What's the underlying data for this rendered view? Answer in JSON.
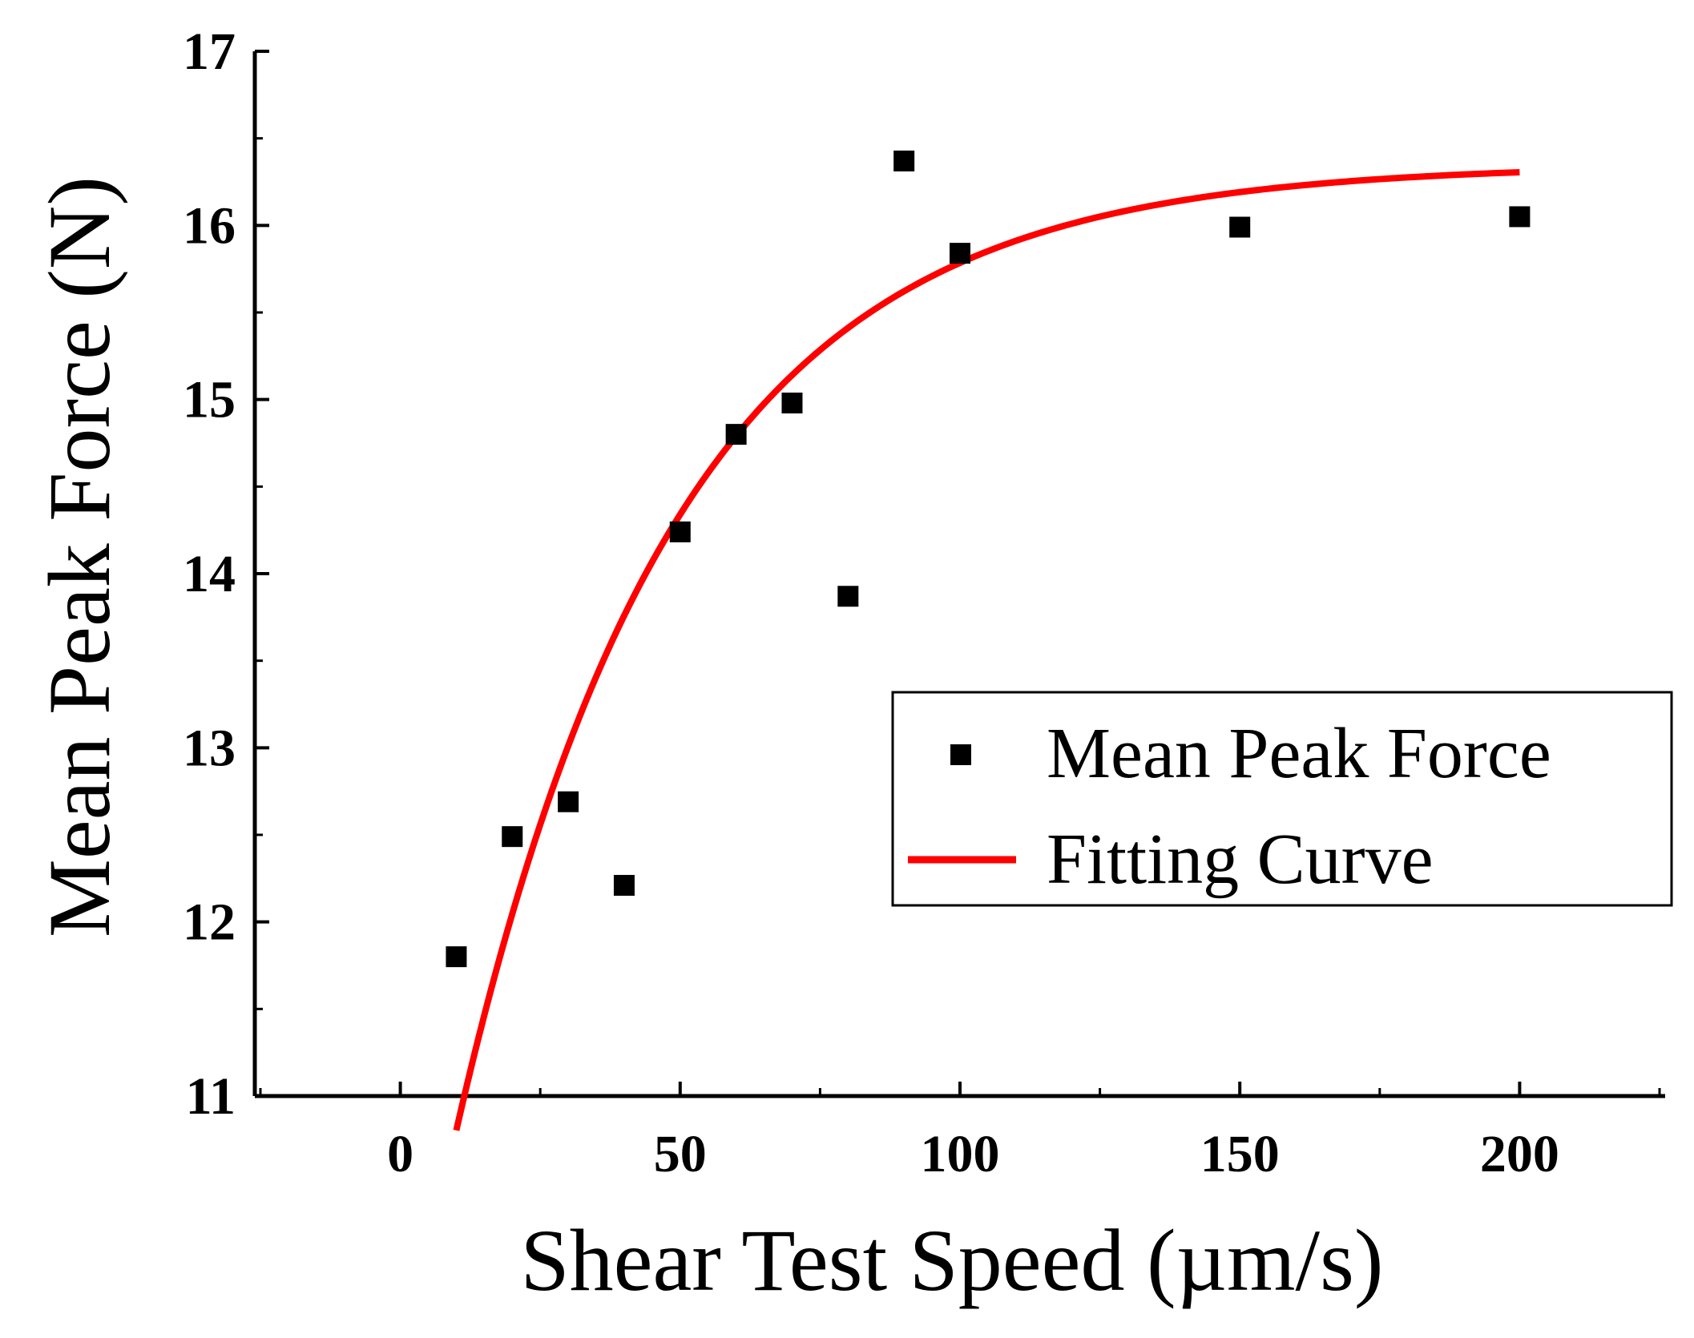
{
  "chart_data": {
    "type": "scatter",
    "title": "",
    "xlabel": "Shear Test Speed (µm/s)",
    "ylabel": "Mean Peak Force (N)",
    "xlim": [
      -26,
      226
    ],
    "ylim": [
      11,
      17
    ],
    "xticks": [
      0,
      50,
      100,
      150,
      200
    ],
    "xtick_labels": [
      "0",
      "50",
      "100",
      "150",
      "200"
    ],
    "yticks": [
      11,
      12,
      13,
      14,
      15,
      16,
      17
    ],
    "ytick_labels": [
      "11",
      "12",
      "13",
      "14",
      "15",
      "16",
      "17"
    ],
    "series": [
      {
        "name": "Mean Peak Force",
        "kind": "scatter",
        "marker": "square",
        "color": "#000000",
        "x": [
          10,
          20,
          30,
          40,
          50,
          60,
          70,
          80,
          90,
          100,
          150,
          200
        ],
        "y": [
          11.8,
          12.49,
          12.69,
          12.21,
          14.24,
          14.8,
          14.98,
          13.87,
          16.37,
          15.84,
          15.99,
          16.05
        ]
      },
      {
        "name": "Fitting Curve",
        "kind": "line",
        "color": "#ff0000",
        "x_range": [
          10,
          200
        ],
        "model": "exponential",
        "y0": 16.35,
        "A": 7.15,
        "t": 39.4
      }
    ],
    "legend": {
      "position": "right-middle",
      "entries": [
        "Mean Peak Force",
        "Fitting Curve"
      ]
    },
    "grid": false
  }
}
